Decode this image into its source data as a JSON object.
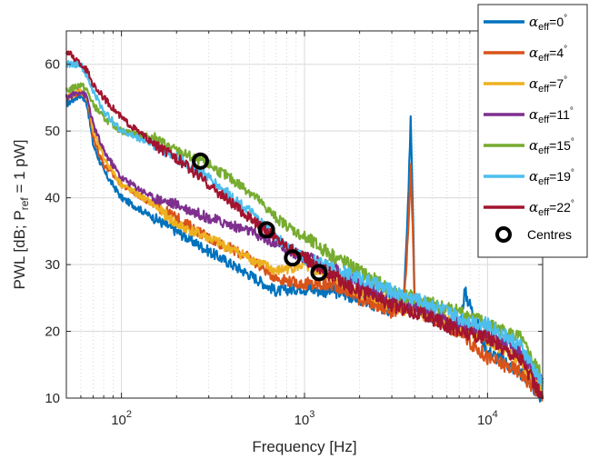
{
  "chart_data": {
    "type": "line",
    "xlabel": "Frequency [Hz]",
    "xlabel_parts": {
      "base": "PWL [dB; P",
      "sub": "ref",
      "rest": " = 1 pW]"
    },
    "x_scale": "log",
    "xlim": [
      50,
      20000
    ],
    "ylim": [
      10,
      65
    ],
    "grid": true,
    "legend_position": "top-right",
    "y_ticks": [
      "10",
      "20",
      "30",
      "40",
      "50",
      "60"
    ],
    "x_ticks": [
      {
        "value": 100,
        "base": "10",
        "exp": "2"
      },
      {
        "value": 1000,
        "base": "10",
        "exp": "3"
      },
      {
        "value": 10000,
        "base": "10",
        "exp": "4"
      }
    ],
    "series": [
      {
        "name": "αeff=0°",
        "label_parts": {
          "greek": "α",
          "sub": "eff",
          "value": "=0",
          "deg": "°"
        },
        "color": "#0072BD",
        "x": [
          50,
          60,
          65,
          70,
          80,
          100,
          150,
          200,
          300,
          500,
          700,
          1000,
          1500,
          2000,
          3000,
          3500,
          3700,
          3800,
          3900,
          4000,
          5000,
          7000,
          7500,
          10000,
          15000,
          20000
        ],
        "y": [
          54,
          55.5,
          54,
          48,
          44,
          40,
          37,
          35,
          32,
          28.5,
          26,
          26.5,
          26,
          25,
          23,
          25,
          40,
          52.5,
          40,
          25,
          22,
          20,
          26,
          17,
          14,
          10
        ]
      },
      {
        "name": "αeff=4°",
        "label_parts": {
          "greek": "α",
          "sub": "eff",
          "value": "=4",
          "deg": "°"
        },
        "color": "#D95319",
        "x": [
          50,
          60,
          65,
          70,
          80,
          100,
          150,
          200,
          300,
          500,
          700,
          1000,
          1500,
          2000,
          3000,
          3500,
          3700,
          3800,
          3900,
          4000,
          5000,
          7000,
          10000,
          15000,
          20000
        ],
        "y": [
          55,
          56,
          55,
          49,
          45,
          42,
          39,
          37,
          34,
          31,
          28,
          27,
          27,
          25,
          23,
          24,
          35,
          45,
          35,
          24,
          22,
          20,
          16,
          14,
          10
        ]
      },
      {
        "name": "αeff=7°",
        "label_parts": {
          "greek": "α",
          "sub": "eff",
          "value": "=7",
          "deg": "°"
        },
        "color": "#EDB120",
        "x": [
          50,
          60,
          65,
          70,
          80,
          100,
          150,
          200,
          300,
          500,
          700,
          1000,
          1500,
          2000,
          3000,
          5000,
          7000,
          10000,
          15000,
          20000
        ],
        "y": [
          55,
          56,
          55,
          50,
          46,
          42,
          39,
          36,
          34,
          31,
          29,
          30,
          28,
          26,
          24,
          22,
          21,
          19,
          16,
          11
        ]
      },
      {
        "name": "αeff=11°",
        "label_parts": {
          "greek": "α",
          "sub": "eff",
          "value": "=11",
          "deg": "°"
        },
        "color": "#7E2F8E",
        "x": [
          50,
          60,
          65,
          70,
          80,
          100,
          150,
          200,
          300,
          500,
          700,
          1000,
          1500,
          2000,
          3000,
          5000,
          7000,
          10000,
          15000,
          20000
        ],
        "y": [
          55,
          56,
          55,
          51,
          47,
          43,
          40,
          39,
          37,
          35,
          33,
          31,
          29,
          27,
          25,
          23,
          21,
          20,
          17,
          12
        ]
      },
      {
        "name": "αeff=15°",
        "label_parts": {
          "greek": "α",
          "sub": "eff",
          "value": "=15",
          "deg": "°"
        },
        "color": "#77AC30",
        "x": [
          50,
          60,
          65,
          70,
          80,
          100,
          150,
          200,
          300,
          500,
          700,
          1000,
          1500,
          2000,
          3000,
          5000,
          7000,
          10000,
          15000,
          20000
        ],
        "y": [
          56,
          57,
          56,
          54,
          52,
          50,
          49,
          47,
          45,
          41,
          37,
          34,
          31,
          29,
          26,
          24,
          23,
          21,
          19,
          13
        ]
      },
      {
        "name": "αeff=19°",
        "label_parts": {
          "greek": "α",
          "sub": "eff",
          "value": "=19",
          "deg": "°"
        },
        "color": "#4DBEEE",
        "x": [
          50,
          60,
          65,
          70,
          80,
          100,
          150,
          200,
          300,
          500,
          700,
          1000,
          1500,
          2000,
          3000,
          5000,
          7000,
          10000,
          15000,
          20000
        ],
        "y": [
          60,
          60,
          58,
          56,
          53,
          50,
          48,
          46,
          43,
          38,
          34,
          31,
          29,
          28,
          26,
          24,
          22,
          21,
          18,
          12
        ]
      },
      {
        "name": "αeff=22°",
        "label_parts": {
          "greek": "α",
          "sub": "eff",
          "value": "=22",
          "deg": "°"
        },
        "color": "#A2142F",
        "x": [
          50,
          60,
          65,
          70,
          80,
          100,
          150,
          200,
          300,
          500,
          700,
          1000,
          1500,
          2000,
          3000,
          5000,
          7000,
          10000,
          15000,
          20000
        ],
        "y": [
          62,
          60,
          59,
          57,
          55,
          52,
          48,
          46,
          42,
          37,
          34,
          31,
          28,
          26,
          24,
          22,
          20,
          19,
          16,
          10
        ]
      }
    ],
    "centres": {
      "name": "Centres",
      "x": [
        270,
        620,
        860,
        1200
      ],
      "y": [
        45.5,
        35.2,
        31,
        28.8
      ]
    }
  }
}
